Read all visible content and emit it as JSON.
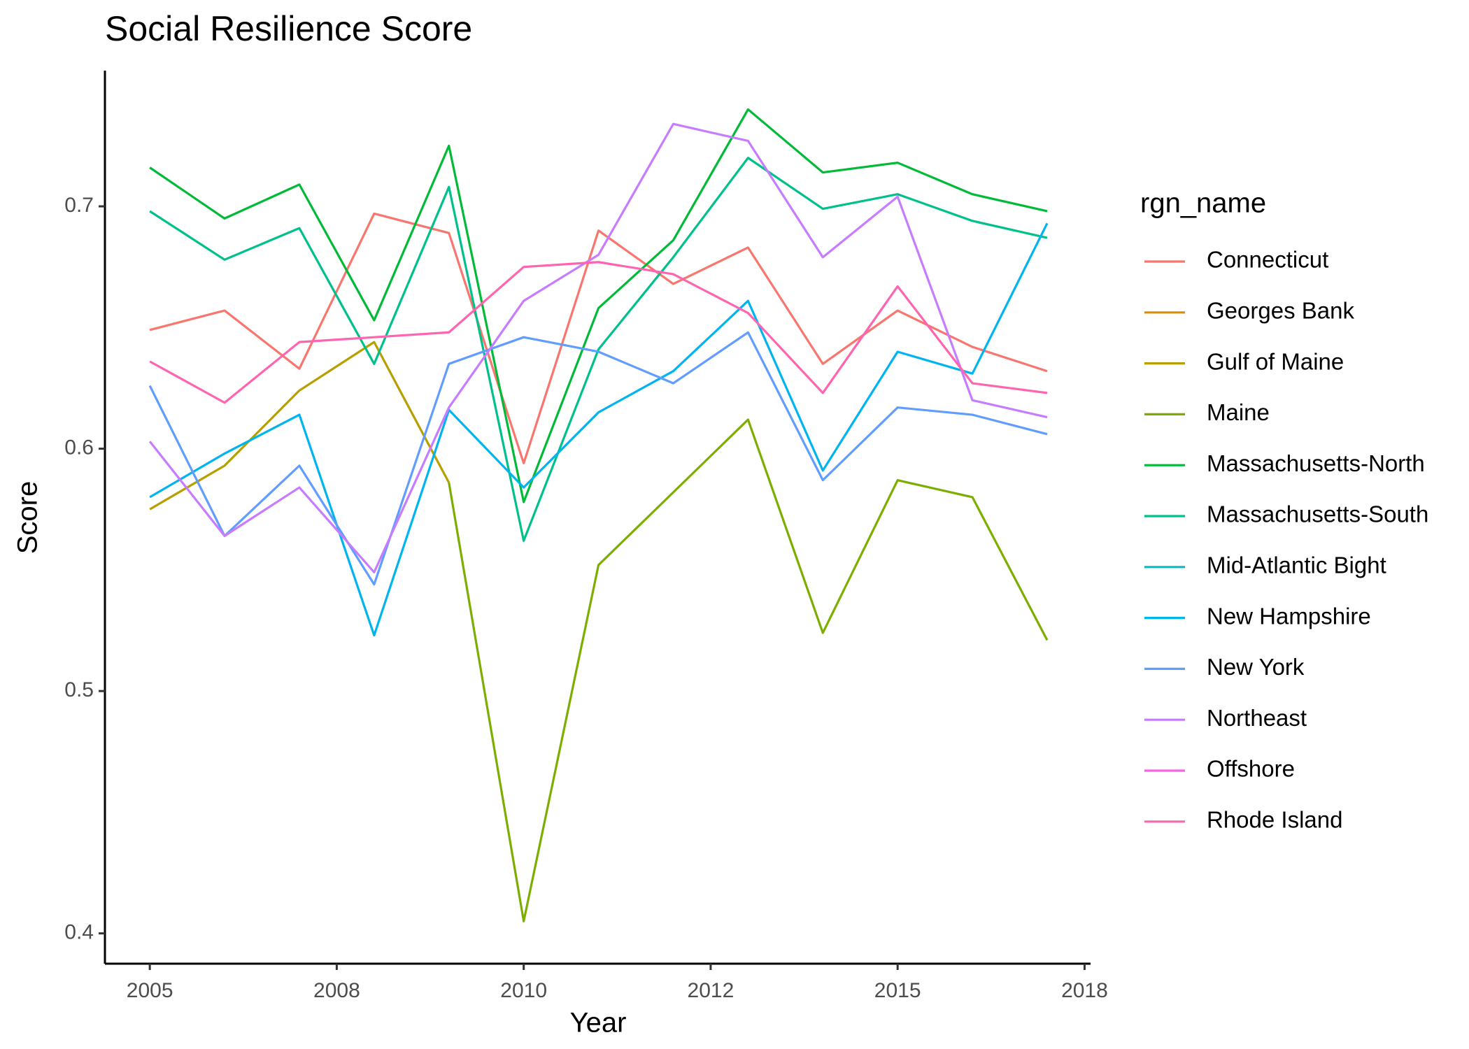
{
  "chart_data": {
    "type": "line",
    "title": "Social Resilience Score",
    "x_label": "Year",
    "y_label": "Score",
    "legend_title": "rgn_name",
    "legend": "right",
    "x": [
      2005,
      2006,
      2007,
      2008,
      2009,
      2010,
      2011,
      2012,
      2013,
      2014,
      2015,
      2016,
      2017
    ],
    "xlim": [
      2004.4,
      2017.58
    ],
    "xticks": [
      2005,
      {
        "value": 2007.5,
        "label": "2008"
      },
      2010,
      {
        "value": 2012.5,
        "label": "2012"
      },
      2015,
      {
        "value": 2017.5,
        "label": "2018"
      }
    ],
    "ylim": [
      0.3875,
      0.756
    ],
    "yticks": [
      0.4,
      0.5,
      0.6,
      0.7
    ],
    "series": [
      {
        "name": "Connecticut",
        "color": "#F8766D",
        "values": [
          0.649,
          0.657,
          0.633,
          0.697,
          0.689,
          0.594,
          0.69,
          0.668,
          0.683,
          0.635,
          0.657,
          0.642,
          0.632
        ]
      },
      {
        "name": "Georges Bank",
        "color": "#DE8C00",
        "values": [
          null,
          null,
          null,
          null,
          null,
          null,
          null,
          null,
          null,
          null,
          null,
          null,
          null
        ]
      },
      {
        "name": "Gulf of Maine",
        "color": "#B79F00",
        "values": [
          0.575,
          0.593,
          0.624,
          0.644,
          0.586,
          null,
          null,
          null,
          null,
          null,
          null,
          null,
          null
        ]
      },
      {
        "name": "Maine",
        "color": "#7CAE00",
        "values": [
          null,
          null,
          null,
          null,
          0.586,
          0.405,
          0.552,
          0.582,
          0.612,
          0.524,
          0.587,
          0.58,
          0.521
        ]
      },
      {
        "name": "Massachusetts-North",
        "color": "#00BA38",
        "values": [
          0.716,
          0.695,
          0.709,
          0.653,
          0.725,
          0.578,
          0.658,
          0.686,
          0.74,
          0.714,
          0.718,
          0.705,
          0.698
        ]
      },
      {
        "name": "Massachusetts-South",
        "color": "#00C08B",
        "values": [
          0.698,
          0.678,
          0.691,
          0.635,
          0.708,
          0.562,
          0.641,
          0.679,
          0.72,
          0.699,
          0.705,
          0.694,
          0.687
        ]
      },
      {
        "name": "Mid-Atlantic Bight",
        "color": "#00BFC4",
        "values": [
          null,
          null,
          null,
          null,
          null,
          null,
          null,
          null,
          null,
          null,
          null,
          null,
          null
        ]
      },
      {
        "name": "New Hampshire",
        "color": "#00B4F0",
        "values": [
          0.58,
          0.598,
          0.614,
          0.523,
          0.616,
          0.584,
          0.615,
          0.632,
          0.661,
          0.591,
          0.64,
          0.631,
          0.693
        ]
      },
      {
        "name": "New York",
        "color": "#619CFF",
        "values": [
          0.626,
          0.564,
          0.593,
          0.544,
          0.635,
          0.646,
          0.64,
          0.627,
          0.648,
          0.587,
          0.617,
          0.614,
          0.606
        ]
      },
      {
        "name": "Northeast",
        "color": "#C77CFF",
        "values": [
          0.603,
          0.564,
          0.584,
          0.549,
          0.617,
          0.661,
          0.68,
          0.734,
          0.727,
          0.679,
          0.704,
          0.62,
          0.613
        ]
      },
      {
        "name": "Offshore",
        "color": "#F564E3",
        "values": [
          null,
          null,
          null,
          null,
          null,
          null,
          null,
          null,
          null,
          null,
          null,
          null,
          null
        ]
      },
      {
        "name": "Rhode Island",
        "color": "#FF64B0",
        "values": [
          0.636,
          0.619,
          0.644,
          0.646,
          0.648,
          0.675,
          0.677,
          0.672,
          0.656,
          0.623,
          0.667,
          0.627,
          0.623
        ]
      }
    ]
  }
}
